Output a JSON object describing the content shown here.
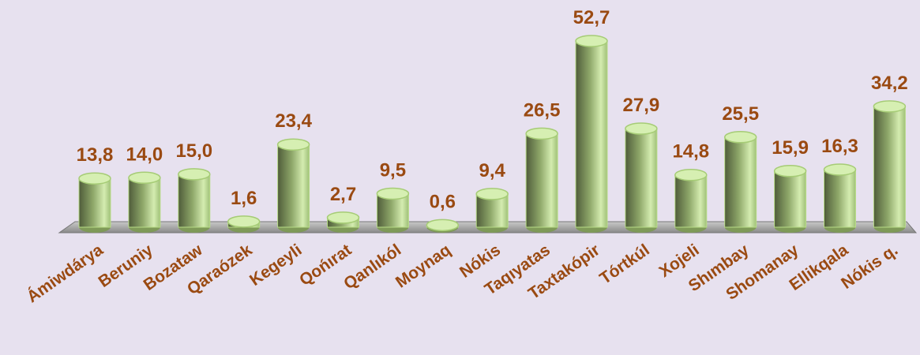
{
  "chart_data": {
    "type": "bar",
    "categories": [
      "Ámiwdárya",
      "Beruniy",
      "Bozataw",
      "Qaraózek",
      "Kegeyli",
      "Qońırat",
      "Qanlıkól",
      "Moynaq",
      "Nókis",
      "Taqıyatas",
      "Taxtakópir",
      "Tórtkúl",
      "Xojeli",
      "Shımbay",
      "Shomanay",
      "Ellikqala",
      "Nókis q."
    ],
    "values": [
      13.8,
      14.0,
      15.0,
      1.6,
      23.4,
      2.7,
      9.5,
      0.6,
      9.4,
      26.5,
      52.7,
      27.9,
      14.8,
      25.5,
      15.9,
      16.3,
      34.2
    ],
    "value_labels": [
      "13,8",
      "14,0",
      "15,0",
      "1,6",
      "23,4",
      "2,7",
      "9,5",
      "0,6",
      "9,4",
      "26,5",
      "52,7",
      "27,9",
      "14,8",
      "25,5",
      "15,9",
      "16,3",
      "34,2"
    ],
    "color": "#a8c878"
  }
}
